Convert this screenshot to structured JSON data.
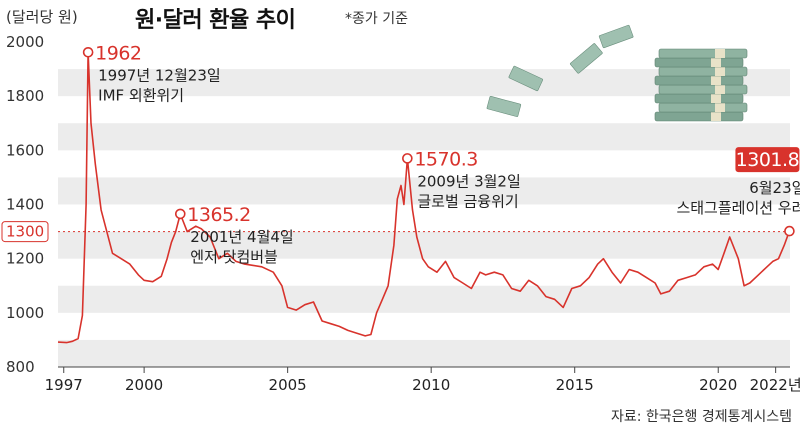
{
  "header": {
    "unit": "(달러당 원)",
    "title": "원·달러 환율 추이",
    "subtitle": "*종가 기준"
  },
  "footer": {
    "source": "자료: 한국은행 경제통계시스템"
  },
  "colors": {
    "line": "#d8332c",
    "band": "#ececec",
    "text": "#222222",
    "money": "#7fa593"
  },
  "icons": {
    "decoration": "money-stack-icon"
  },
  "chart_data": {
    "type": "line",
    "title": "원·달러 환율 추이",
    "ylabel": "(달러당 원)",
    "ylim": [
      800,
      2000
    ],
    "xlim": [
      1997.0,
      2022.5
    ],
    "yticks": [
      800,
      1000,
      1200,
      1300,
      1400,
      1600,
      1800,
      2000
    ],
    "xticks": [
      {
        "v": 1997.2,
        "label": "1997"
      },
      {
        "v": 2000.0,
        "label": "2000"
      },
      {
        "v": 2005.0,
        "label": "2005"
      },
      {
        "v": 2010.0,
        "label": "2010"
      },
      {
        "v": 2015.0,
        "label": "2015"
      },
      {
        "v": 2020.0,
        "label": "2020"
      },
      {
        "v": 2022.0,
        "label": "2022년"
      }
    ],
    "reference_line": {
      "y": 1300,
      "label": "1300"
    },
    "grid": "alternating horizontal bands",
    "series": [
      {
        "x": [
          1997.0,
          1997.3,
          1997.5,
          1997.7,
          1997.85,
          1997.98,
          1998.05,
          1998.15,
          1998.3,
          1998.5,
          1998.7,
          1998.9,
          1999.2,
          1999.5,
          1999.8,
          2000.0,
          2000.3,
          2000.6,
          2000.8,
          2000.95,
          2001.1,
          2001.26,
          2001.5,
          2001.8,
          2002.0,
          2002.3,
          2002.6,
          2002.9,
          2003.2,
          2003.5,
          2003.8,
          2004.1,
          2004.5,
          2004.8,
          2005.0,
          2005.3,
          2005.6,
          2005.9,
          2006.2,
          2006.5,
          2006.8,
          2007.1,
          2007.4,
          2007.7,
          2007.9,
          2008.1,
          2008.3,
          2008.5,
          2008.7,
          2008.82,
          2008.95,
          2009.05,
          2009.17,
          2009.35,
          2009.5,
          2009.7,
          2009.9,
          2010.2,
          2010.5,
          2010.8,
          2011.1,
          2011.4,
          2011.7,
          2011.9,
          2012.2,
          2012.5,
          2012.8,
          2013.1,
          2013.4,
          2013.7,
          2014.0,
          2014.3,
          2014.6,
          2014.9,
          2015.2,
          2015.5,
          2015.8,
          2016.0,
          2016.3,
          2016.6,
          2016.9,
          2017.2,
          2017.5,
          2017.8,
          2018.0,
          2018.3,
          2018.6,
          2018.9,
          2019.2,
          2019.5,
          2019.8,
          2020.0,
          2020.2,
          2020.4,
          2020.7,
          2020.9,
          2021.1,
          2021.4,
          2021.7,
          2021.9,
          2022.1,
          2022.3,
          2022.48
        ],
        "y": [
          892,
          890,
          895,
          905,
          990,
          1400,
          1962,
          1700,
          1550,
          1380,
          1300,
          1220,
          1200,
          1180,
          1140,
          1120,
          1115,
          1135,
          1200,
          1260,
          1300,
          1365,
          1300,
          1320,
          1310,
          1280,
          1200,
          1220,
          1190,
          1180,
          1175,
          1170,
          1150,
          1100,
          1020,
          1010,
          1030,
          1040,
          970,
          960,
          950,
          935,
          925,
          915,
          920,
          1000,
          1050,
          1100,
          1250,
          1420,
          1470,
          1400,
          1570,
          1380,
          1280,
          1200,
          1170,
          1150,
          1190,
          1130,
          1110,
          1090,
          1150,
          1140,
          1150,
          1140,
          1090,
          1080,
          1120,
          1100,
          1060,
          1050,
          1020,
          1090,
          1100,
          1130,
          1180,
          1200,
          1150,
          1110,
          1160,
          1150,
          1130,
          1110,
          1070,
          1080,
          1120,
          1130,
          1140,
          1170,
          1180,
          1160,
          1220,
          1280,
          1200,
          1100,
          1110,
          1140,
          1170,
          1190,
          1200,
          1250,
          1302
        ]
      }
    ],
    "annotations": [
      {
        "x": 1998.05,
        "y": 1962,
        "value": "1962",
        "lines": [
          "1997년 12월23일",
          "IMF 외환위기"
        ]
      },
      {
        "x": 2001.26,
        "y": 1365.2,
        "value": "1365.2",
        "lines": [
          "2001년 4월4일",
          "엔저·닷컴버블"
        ]
      },
      {
        "x": 2009.17,
        "y": 1570.3,
        "value": "1570.3",
        "lines": [
          "2009년 3월2일",
          "글로벌 금융위기"
        ]
      },
      {
        "x": 2022.48,
        "y": 1301.8,
        "value": "1301.8",
        "lines": [
          "6월23일",
          "스태그플레이션 우려"
        ],
        "boxed": true
      }
    ]
  }
}
